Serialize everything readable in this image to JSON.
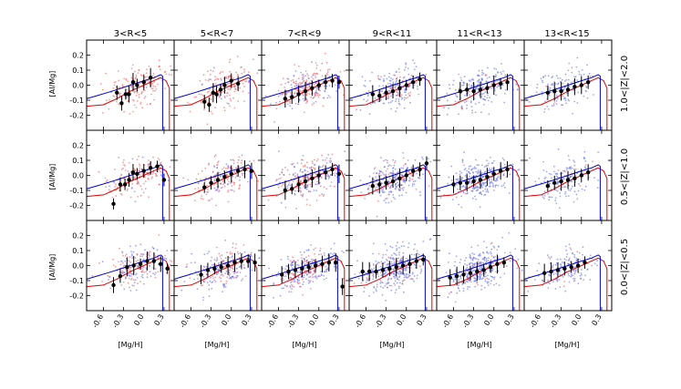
{
  "chart_data": {
    "type": "scatter",
    "layout": "3 rows x 6 columns grid of panels",
    "column_titles": [
      "3<R<5",
      "5<R<7",
      "7<R<9",
      "9<R<11",
      "11<R<13",
      "13<R<15"
    ],
    "row_labels": [
      "1.0<|Z|<2.0",
      "0.5<|Z|<1.0",
      "0.0<|Z|<0.5"
    ],
    "xlabel": "[Mg/H]",
    "ylabel": "[Al/Mg]",
    "xlim": [
      -0.85,
      0.45
    ],
    "ylim": [
      -0.3,
      0.3
    ],
    "xticks": [
      -0.6,
      -0.3,
      0.0,
      0.3
    ],
    "xtick_labels": [
      "-0.6",
      "-0.3",
      "0.0",
      "0.3"
    ],
    "yticks": [
      -0.2,
      -0.1,
      0.0,
      0.1,
      0.2
    ],
    "ytick_labels": [
      "-0.2",
      "-0.1",
      "0.0",
      "0.1",
      "0.2"
    ],
    "colors": {
      "red_model": "#e00000",
      "blue_model": "#0000d0",
      "red_points": "#f05050",
      "blue_points": "#5060f0",
      "binned_points": "#000000"
    },
    "series": [
      {
        "name": "red model track",
        "x": [
          -0.85,
          -0.6,
          -0.4,
          -0.2,
          0.0,
          0.15,
          0.25,
          0.33,
          0.38,
          0.38
        ],
        "y": [
          -0.14,
          -0.13,
          -0.09,
          -0.04,
          0.0,
          0.03,
          0.05,
          0.03,
          -0.02,
          -0.3
        ]
      },
      {
        "name": "blue model track",
        "x": [
          -0.85,
          -0.7,
          -0.55,
          -0.4,
          -0.2,
          0.0,
          0.15,
          0.25,
          0.28,
          0.28
        ],
        "y": [
          -0.09,
          -0.07,
          -0.05,
          -0.03,
          0.0,
          0.03,
          0.05,
          0.07,
          0.06,
          -0.3
        ]
      }
    ],
    "binned_means": [
      [
        {
          "x": [
            -0.4,
            -0.33,
            -0.27,
            -0.22,
            -0.16,
            -0.1,
            0.0,
            0.1
          ],
          "y": [
            -0.05,
            -0.12,
            -0.06,
            -0.06,
            0.02,
            0.0,
            0.02,
            0.05
          ]
        },
        {
          "x": [
            -0.4,
            -0.33,
            -0.27,
            -0.22,
            -0.16,
            -0.1,
            0.0,
            0.1
          ],
          "y": [
            -0.11,
            -0.13,
            -0.05,
            -0.06,
            -0.03,
            0.0,
            0.03,
            0.01
          ]
        },
        {
          "x": [
            -0.5,
            -0.4,
            -0.3,
            -0.2,
            -0.1,
            0.0,
            0.1,
            0.2,
            0.3
          ],
          "y": [
            -0.09,
            -0.08,
            -0.06,
            -0.04,
            -0.02,
            0.0,
            0.02,
            0.03,
            0.02
          ]
        },
        {
          "x": [
            -0.5,
            -0.4,
            -0.3,
            -0.2,
            -0.1,
            0.0,
            0.1,
            0.2
          ],
          "y": [
            -0.06,
            -0.07,
            -0.05,
            -0.04,
            -0.02,
            0.0,
            0.02,
            0.04
          ]
        },
        {
          "x": [
            -0.5,
            -0.4,
            -0.3,
            -0.2,
            -0.1,
            0.0,
            0.1,
            0.2
          ],
          "y": [
            -0.04,
            -0.03,
            -0.04,
            -0.03,
            -0.02,
            0.0,
            0.01,
            0.02
          ]
        },
        {
          "x": [
            -0.5,
            -0.4,
            -0.3,
            -0.2,
            -0.1,
            0.0,
            0.1
          ],
          "y": [
            -0.05,
            -0.04,
            -0.04,
            -0.03,
            -0.01,
            0.0,
            0.02
          ]
        }
      ],
      [
        {
          "x": [
            -0.45,
            -0.35,
            -0.28,
            -0.22,
            -0.16,
            -0.1,
            0.0,
            0.1,
            0.2,
            0.3
          ],
          "y": [
            -0.19,
            -0.06,
            -0.06,
            -0.03,
            0.02,
            0.01,
            0.03,
            0.05,
            0.06,
            -0.03
          ]
        },
        {
          "x": [
            -0.4,
            -0.3,
            -0.2,
            -0.1,
            0.0,
            0.1,
            0.2,
            0.3
          ],
          "y": [
            -0.08,
            -0.05,
            -0.03,
            -0.01,
            0.01,
            0.03,
            0.04,
            0.03
          ]
        },
        {
          "x": [
            -0.5,
            -0.4,
            -0.3,
            -0.2,
            -0.1,
            0.0,
            0.1,
            0.2,
            0.3
          ],
          "y": [
            -0.1,
            -0.09,
            -0.06,
            -0.04,
            -0.02,
            0.0,
            0.02,
            0.04,
            0.01
          ]
        },
        {
          "x": [
            -0.5,
            -0.4,
            -0.3,
            -0.2,
            -0.1,
            0.0,
            0.1,
            0.2,
            0.3
          ],
          "y": [
            -0.07,
            -0.06,
            -0.05,
            -0.04,
            -0.02,
            0.0,
            0.03,
            0.04,
            0.08
          ]
        },
        {
          "x": [
            -0.6,
            -0.5,
            -0.4,
            -0.3,
            -0.2,
            -0.1,
            0.0,
            0.1,
            0.2
          ],
          "y": [
            -0.06,
            -0.05,
            -0.05,
            -0.04,
            -0.03,
            -0.01,
            0.01,
            0.03,
            0.04
          ]
        },
        {
          "x": [
            -0.5,
            -0.4,
            -0.3,
            -0.2,
            -0.1,
            0.0,
            0.1
          ],
          "y": [
            -0.07,
            -0.05,
            -0.04,
            -0.03,
            -0.02,
            0.0,
            0.02
          ]
        }
      ],
      [
        {
          "x": [
            -0.45,
            -0.35,
            -0.25,
            -0.15,
            -0.05,
            0.05,
            0.15,
            0.25,
            0.35
          ],
          "y": [
            -0.13,
            -0.07,
            -0.01,
            0.0,
            0.01,
            0.03,
            0.03,
            0.01,
            -0.02
          ]
        },
        {
          "x": [
            -0.45,
            -0.35,
            -0.25,
            -0.15,
            -0.05,
            0.05,
            0.15,
            0.25,
            0.35
          ],
          "y": [
            -0.06,
            -0.03,
            -0.02,
            -0.01,
            0.0,
            0.02,
            0.03,
            0.03,
            0.02
          ]
        },
        {
          "x": [
            -0.55,
            -0.45,
            -0.35,
            -0.25,
            -0.15,
            -0.05,
            0.05,
            0.15,
            0.25,
            0.35
          ],
          "y": [
            -0.06,
            -0.04,
            -0.03,
            -0.02,
            -0.01,
            0.0,
            0.01,
            0.02,
            0.02,
            -0.14
          ]
        },
        {
          "x": [
            -0.65,
            -0.55,
            -0.45,
            -0.35,
            -0.25,
            -0.15,
            -0.05,
            0.05,
            0.15,
            0.25
          ],
          "y": [
            -0.04,
            -0.04,
            -0.04,
            -0.03,
            -0.02,
            -0.01,
            0.0,
            0.01,
            0.03,
            0.04
          ]
        },
        {
          "x": [
            -0.65,
            -0.55,
            -0.45,
            -0.35,
            -0.25,
            -0.15,
            -0.05,
            0.05,
            0.15
          ],
          "y": [
            -0.08,
            -0.07,
            -0.06,
            -0.05,
            -0.04,
            -0.03,
            -0.01,
            0.01,
            0.02
          ]
        },
        {
          "x": [
            -0.55,
            -0.45,
            -0.35,
            -0.25,
            -0.15,
            -0.05,
            0.05
          ],
          "y": [
            -0.05,
            -0.04,
            -0.03,
            -0.02,
            -0.01,
            0.0,
            0.02
          ]
        }
      ]
    ],
    "scatter_summary": {
      "description_mix": "red and blue point clouds; blue dominates at large R and low |Z|",
      "blue_fraction": [
        [
          0.05,
          0.1,
          0.35,
          0.7,
          0.95,
          0.95
        ],
        [
          0.15,
          0.3,
          0.5,
          0.8,
          0.95,
          0.95
        ],
        [
          0.5,
          0.65,
          0.7,
          0.85,
          0.9,
          0.9
        ]
      ],
      "density": [
        [
          0.4,
          0.4,
          0.8,
          0.6,
          0.5,
          0.3
        ],
        [
          0.4,
          0.45,
          0.75,
          0.8,
          0.8,
          0.4
        ],
        [
          0.55,
          0.7,
          0.9,
          1.0,
          1.0,
          0.35
        ]
      ]
    }
  }
}
